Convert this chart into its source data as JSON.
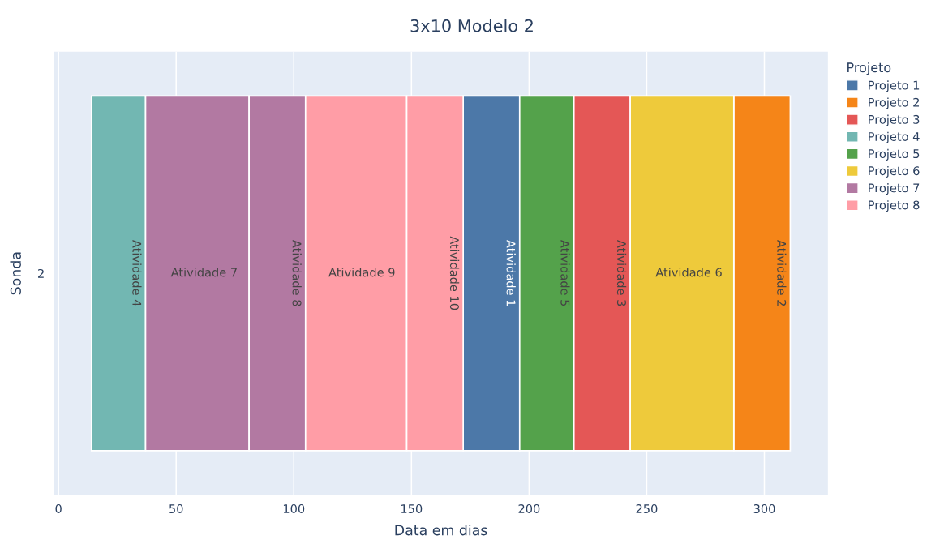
{
  "chart_data": {
    "type": "bar",
    "orientation": "horizontal",
    "title": "3x10 Modelo 2",
    "xlabel": "Data em dias",
    "ylabel": "Sonda",
    "legend_title": "Projeto",
    "legend": "top right",
    "grid": "x",
    "categories": [
      "2"
    ],
    "xlim": [
      -2,
      327
    ],
    "xticks": [
      0,
      50,
      100,
      150,
      200,
      250,
      300
    ],
    "series": [
      {
        "name": "Projeto 1",
        "color": "#4c78a8",
        "base": [
          172
        ],
        "values": [
          24
        ],
        "value_labels": [
          "Atividade 1"
        ]
      },
      {
        "name": "Projeto 2",
        "color": "#f58518",
        "base": [
          287
        ],
        "values": [
          24
        ],
        "value_labels": [
          "Atividade 2"
        ]
      },
      {
        "name": "Projeto 3",
        "color": "#e45756",
        "base": [
          219
        ],
        "values": [
          24
        ],
        "value_labels": [
          "Atividade 3"
        ]
      },
      {
        "name": "Projeto 4",
        "color": "#72b7b2",
        "base": [
          14
        ],
        "values": [
          23
        ],
        "value_labels": [
          "Atividade 4"
        ]
      },
      {
        "name": "Projeto 5",
        "color": "#54a24b",
        "base": [
          196
        ],
        "values": [
          23
        ],
        "value_labels": [
          "Atividade 5"
        ]
      },
      {
        "name": "Projeto 6",
        "color": "#eeca3b",
        "base": [
          243
        ],
        "values": [
          44
        ],
        "value_labels": [
          "Atividade 6"
        ]
      },
      {
        "name": "Projeto 7",
        "color": "#b279a2",
        "base": [
          37
        ],
        "values": [
          44
        ],
        "value_labels": [
          "Atividade 7"
        ]
      },
      {
        "color": "#b279a2",
        "base": [
          81
        ],
        "values": [
          24
        ],
        "value_labels": [
          "Atividade 8"
        ]
      },
      {
        "name": "Projeto 8",
        "color": "#ff9da6",
        "base": [
          105
        ],
        "values": [
          43
        ],
        "value_labels": [
          "Atividade 9"
        ]
      },
      {
        "color": "#ff9da6",
        "base": [
          148
        ],
        "values": [
          24
        ],
        "value_labels": [
          "Atividade 10"
        ]
      }
    ]
  }
}
